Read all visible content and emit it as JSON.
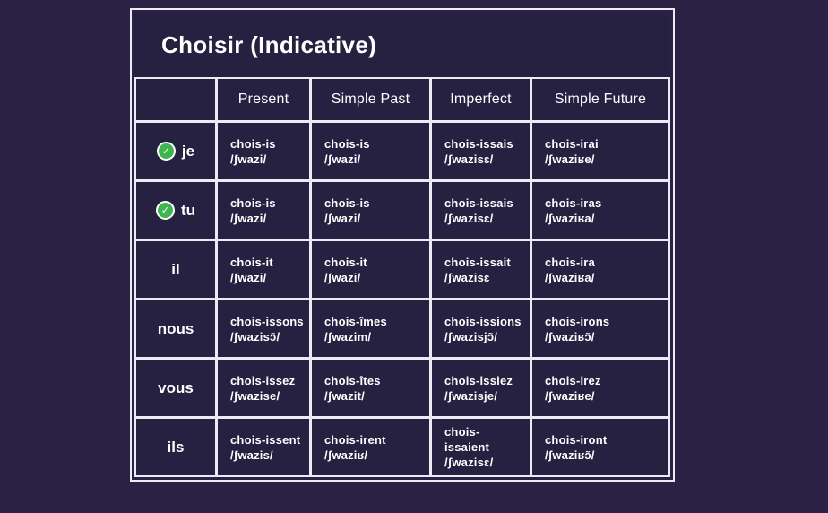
{
  "theme": {
    "page_background": "#2a2145",
    "cell_background": "#262041",
    "border_color": "#eceaf2",
    "check_color": "#3eb54e",
    "text_color": "#ffffff"
  },
  "title": "Choisir (Indicative)",
  "columns": [
    "Present",
    "Simple Past",
    "Imperfect",
    "Simple Future"
  ],
  "check_icon_glyph": "✓",
  "rows": [
    {
      "pronoun": "je",
      "checked": true,
      "cells": [
        {
          "form": "chois-is",
          "ipa": "/ʃwazi/"
        },
        {
          "form": "chois-is",
          "ipa": "/ʃwazi/"
        },
        {
          "form": "chois-issais",
          "ipa": "/ʃwazisɛ/"
        },
        {
          "form": "chois-irai",
          "ipa": "/ʃwaziʁe/"
        }
      ]
    },
    {
      "pronoun": "tu",
      "checked": true,
      "cells": [
        {
          "form": "chois-is",
          "ipa": "/ʃwazi/"
        },
        {
          "form": "chois-is",
          "ipa": "/ʃwazi/"
        },
        {
          "form": "chois-issais",
          "ipa": "/ʃwazisɛ/"
        },
        {
          "form": "chois-iras",
          "ipa": "/ʃwaziʁa/"
        }
      ]
    },
    {
      "pronoun": "il",
      "checked": false,
      "cells": [
        {
          "form": "chois-it",
          "ipa": "/ʃwazi/"
        },
        {
          "form": "chois-it",
          "ipa": "/ʃwazi/"
        },
        {
          "form": "chois-issait",
          "ipa": "/ʃwazisɛ"
        },
        {
          "form": "chois-ira",
          "ipa": "/ʃwaziʁa/"
        }
      ]
    },
    {
      "pronoun": "nous",
      "checked": false,
      "cells": [
        {
          "form": "chois-issons",
          "ipa": "/ʃwazisɔ̃/"
        },
        {
          "form": "chois-îmes",
          "ipa": "/ʃwazim/"
        },
        {
          "form": "chois-issions",
          "ipa": "/ʃwazisjɔ̃/"
        },
        {
          "form": "chois-irons",
          "ipa": "/ʃwaziʁɔ̃/"
        }
      ]
    },
    {
      "pronoun": "vous",
      "checked": false,
      "cells": [
        {
          "form": "chois-issez",
          "ipa": "/ʃwazise/"
        },
        {
          "form": "chois-îtes",
          "ipa": "/ʃwazit/"
        },
        {
          "form": "chois-issiez",
          "ipa": "/ʃwazisje/"
        },
        {
          "form": "chois-irez",
          "ipa": "/ʃwaziʁe/"
        }
      ]
    },
    {
      "pronoun": "ils",
      "checked": false,
      "cells": [
        {
          "form": "chois-issent",
          "ipa": "/ʃwazis/"
        },
        {
          "form": "chois-irent",
          "ipa": "/ʃwaziʁ/"
        },
        {
          "form": "chois-issaient",
          "ipa": "/ʃwazisɛ/"
        },
        {
          "form": "chois-iront",
          "ipa": "/ʃwaziʁɔ̃/"
        }
      ]
    }
  ]
}
